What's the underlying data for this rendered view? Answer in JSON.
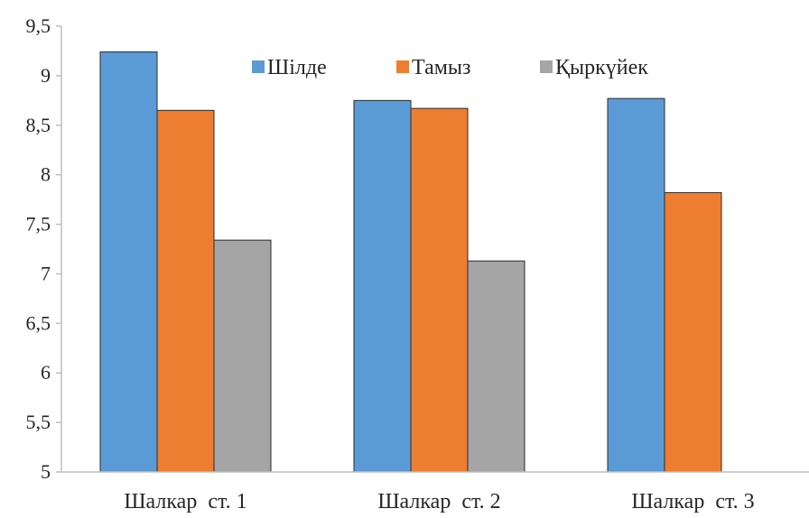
{
  "chart_data": {
    "type": "bar",
    "title": "",
    "xlabel": "",
    "ylabel": "",
    "categories": [
      "Шалкар  ст. 1",
      "Шалкар  ст. 2",
      "Шалкар  ст. 3"
    ],
    "series": [
      {
        "name": "Шілде",
        "color": "#5b9bd5",
        "values": [
          9.24,
          8.75,
          8.77
        ]
      },
      {
        "name": "Тамыз",
        "color": "#ed7d31",
        "values": [
          8.65,
          8.67,
          7.82
        ]
      },
      {
        "name": "Қыркүйек",
        "color": "#a5a5a5",
        "values": [
          7.34,
          7.13,
          null
        ]
      }
    ],
    "ylim": [
      5,
      9.5
    ],
    "yticks": [
      "5",
      "5,5",
      "6",
      "6,5",
      "7",
      "7,5",
      "8",
      "8,5",
      "9",
      "9,5"
    ],
    "grid": false,
    "legend_position": "top-center"
  }
}
